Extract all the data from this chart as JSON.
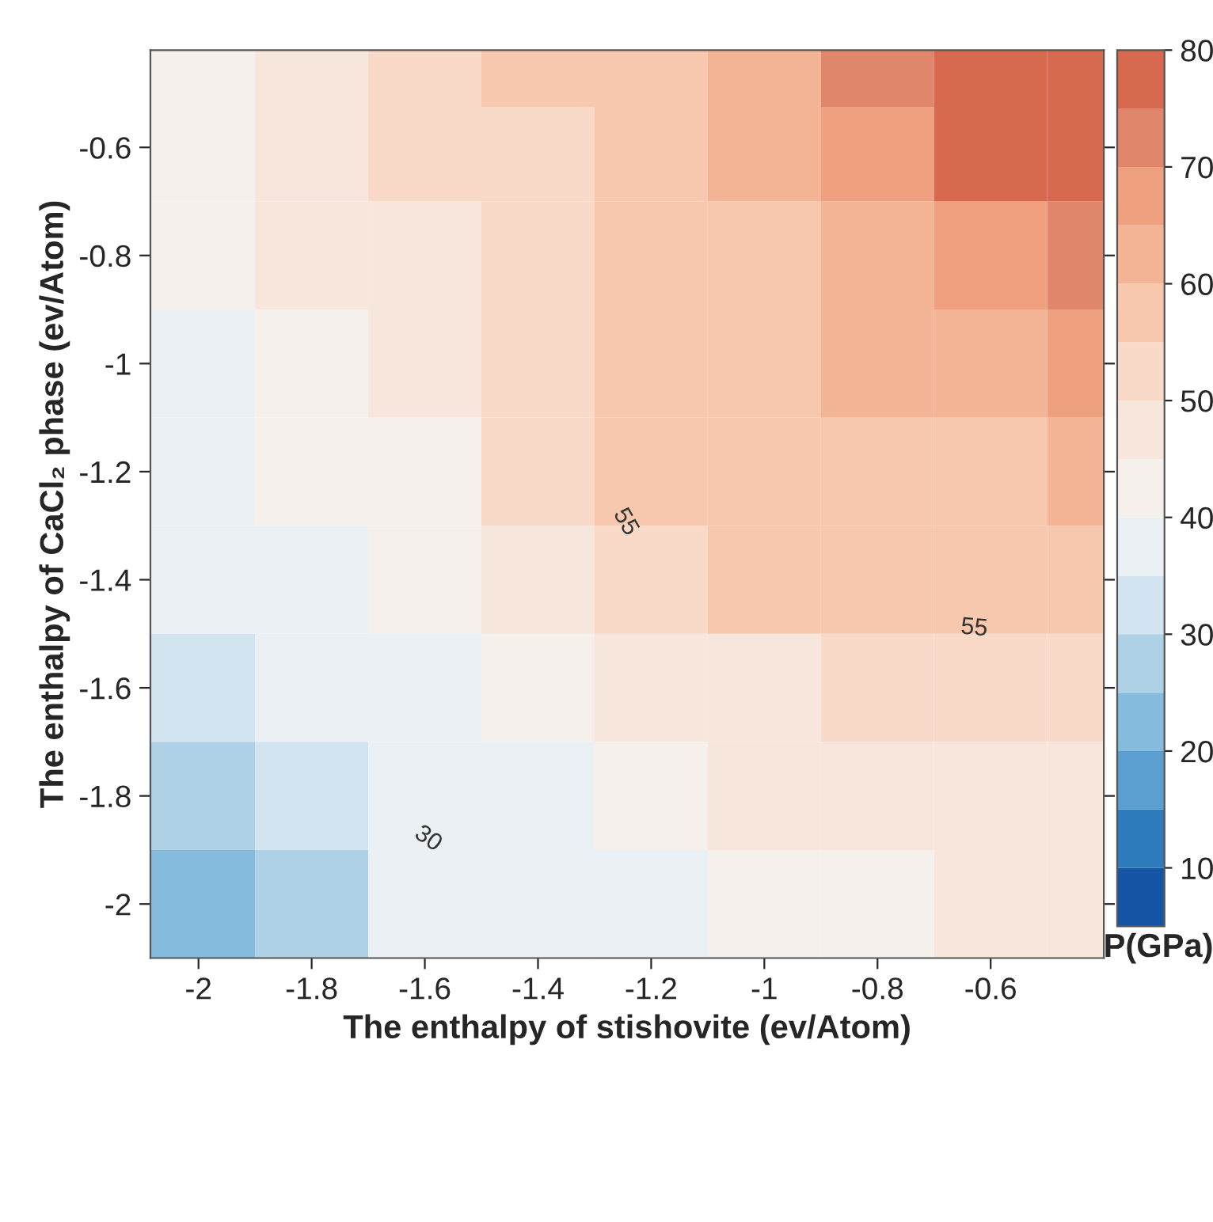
{
  "chart_data": {
    "type": "heatmap",
    "xlabel": "The enthalpy of stishovite (ev/Atom)",
    "ylabel": "The enthalpy of CaCl₂ phase (ev/Atom)",
    "clabel": "P(GPa)",
    "x": [
      -2.0,
      -1.8,
      -1.6,
      -1.4,
      -1.2,
      -1.0,
      -0.8,
      -0.6,
      -0.4
    ],
    "y": [
      -2.0,
      -1.8,
      -1.6,
      -1.4,
      -1.2,
      -1.0,
      -0.8,
      -0.6,
      -0.45
    ],
    "cells": [
      [
        23,
        29,
        36,
        37.5,
        39.5,
        41,
        44,
        46,
        47.5
      ],
      [
        26.5,
        34,
        37.5,
        39,
        43,
        46,
        48.5,
        49,
        49.5
      ],
      [
        30.5,
        35.5,
        38.5,
        41,
        45.5,
        49.5,
        52,
        53.5,
        54
      ],
      [
        36,
        38,
        41,
        45.5,
        51.5,
        55.5,
        56,
        56.5,
        57
      ],
      [
        37.5,
        40,
        44.5,
        50.5,
        56,
        57,
        58,
        59,
        60.5
      ],
      [
        39,
        43,
        47.5,
        53,
        55.5,
        56.5,
        60,
        62.5,
        65.5
      ],
      [
        41,
        45,
        49,
        54,
        56,
        59.5,
        63,
        69.5,
        72
      ],
      [
        43.5,
        46.5,
        50,
        54,
        57.5,
        62,
        67.5,
        75,
        78
      ],
      [
        44,
        48,
        51.5,
        55,
        58,
        64,
        70.5,
        77,
        79
      ]
    ],
    "colors": [
      "#1555a6",
      "#2f7cbd",
      "#5a9fcf",
      "#85bbdc",
      "#aed1e6",
      "#d2e4f0",
      "#ebf0f5",
      "#f5f0eb",
      "#f6e6dc",
      "#f9dac8",
      "#f7c8ad",
      "#f3b596",
      "#eea07f",
      "#e0866a",
      "#d6694e"
    ],
    "clim": [
      5,
      80
    ],
    "cticks": [
      10,
      20,
      30,
      40,
      50,
      60,
      70,
      80
    ],
    "xlim": [
      -2.085,
      -0.4
    ],
    "ylim": [
      -2.1,
      -0.42
    ],
    "xticks": [
      -2,
      -1.8,
      -1.6,
      -1.4,
      -1.2,
      -1,
      -0.8,
      -0.6
    ],
    "yticks": [
      -2,
      -1.8,
      -1.6,
      -1.4,
      -1.2,
      -1,
      -0.8,
      -0.6
    ],
    "annotations": [
      "55",
      "55",
      "30"
    ]
  }
}
